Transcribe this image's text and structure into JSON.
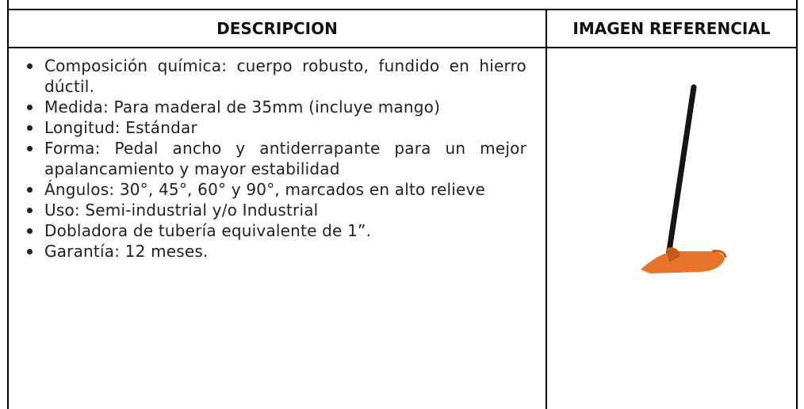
{
  "table": {
    "headers": [
      "DESCRIPCION",
      "IMAGEN REFERENCIAL"
    ],
    "items": [
      "Composición química: cuerpo robusto, fundido en hierro dúctil.",
      "Medida: Para maderal de 35mm (incluye mango)",
      "Longitud: Estándar",
      "Forma: Pedal ancho y antiderrapante para un mejor apalancamiento y mayor estabilidad",
      "Ángulos: 30°, 45°, 60° y 90°, marcados en alto relieve",
      "Uso: Semi-industrial y/o Industrial",
      "Dobladora de tubería equivalente de 1”.",
      "Garantía: 12 meses."
    ]
  }
}
